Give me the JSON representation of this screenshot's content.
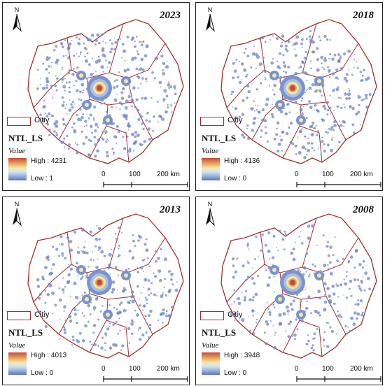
{
  "panels": [
    {
      "year": "2023",
      "high": "High : 4231",
      "low": "Low : 1"
    },
    {
      "year": "2018",
      "high": "High : 4136",
      "low": "Low : 0"
    },
    {
      "year": "2013",
      "high": "High : 4013",
      "low": "Low : 0"
    },
    {
      "year": "2008",
      "high": "High : 3948",
      "low": "Low : 0"
    }
  ],
  "legend": {
    "city_label": "Citiy",
    "title": "NTL_LS",
    "value_label": "Value"
  },
  "north_label": "N",
  "scale": {
    "zero": "0",
    "mid": "100",
    "end": "200 km"
  },
  "colors": {
    "boundary": "#a0302a",
    "low": "#5a74c2",
    "mid": "#f3e8a8",
    "high": "#c8483c"
  }
}
